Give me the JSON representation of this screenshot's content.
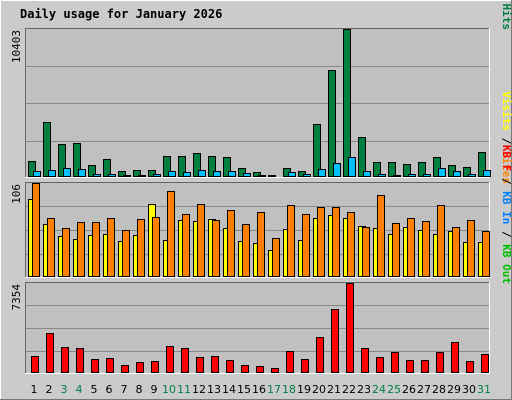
{
  "colors": {
    "bg": "#cbcbcb",
    "plot": "#c0c0c0",
    "grid": "#888888",
    "title": "#0000a0",
    "pages": "#00c0ff",
    "files": "#0000ff",
    "hits": "#008040",
    "visits": "#ffff00",
    "sites": "#ff8000",
    "kbf": "#ff0000",
    "kbin": "#0080ff",
    "kbout": "#00c000",
    "weekend": "#00804a",
    "weekday": "#000000"
  },
  "chart_data": {
    "title": "Daily usage for January 2026",
    "type": "bar",
    "days": [
      "1",
      "2",
      "3",
      "4",
      "5",
      "6",
      "7",
      "8",
      "9",
      "10",
      "11",
      "12",
      "13",
      "14",
      "15",
      "16",
      "17",
      "18",
      "19",
      "20",
      "21",
      "22",
      "23",
      "24",
      "25",
      "26",
      "27",
      "28",
      "29",
      "30",
      "31"
    ],
    "weekend_days": [
      "3",
      "4",
      "10",
      "11",
      "17",
      "18",
      "24",
      "25",
      "31"
    ],
    "panels": [
      {
        "max_label": "10403",
        "ymax": 10403,
        "right_labels": [
          {
            "text": "Pages",
            "color": "#00c0ff"
          },
          {
            "text": " / ",
            "color": "#000000"
          },
          {
            "text": "Files",
            "color": "#0000ff"
          },
          {
            "text": " / ",
            "color": "#000000"
          },
          {
            "text": "Hits",
            "color": "#008040"
          }
        ],
        "series": [
          {
            "name": "Hits",
            "color": "#008040",
            "values": [
              1100,
              3900,
              2300,
              2400,
              850,
              1300,
              420,
              500,
              500,
              1500,
              1500,
              1700,
              1450,
              1400,
              620,
              380,
              120,
              650,
              400,
              3700,
              7550,
              10403,
              2800,
              1050,
              1050,
              900,
              1050,
              1400,
              850,
              670,
              1750
            ]
          },
          {
            "name": "Files",
            "color": "#0000ff",
            "values": [
              0,
              0,
              0,
              0,
              0,
              0,
              0,
              0,
              0,
              0,
              0,
              0,
              0,
              0,
              0,
              0,
              0,
              0,
              0,
              0,
              0,
              0,
              0,
              0,
              0,
              0,
              0,
              0,
              0,
              0,
              0
            ]
          },
          {
            "name": "Pages",
            "color": "#00c0ff",
            "values": [
              420,
              500,
              650,
              540,
              240,
              200,
              160,
              160,
              200,
              400,
              340,
              520,
              400,
              400,
              300,
              120,
              40,
              360,
              220,
              550,
              1000,
              1400,
              450,
              230,
              160,
              230,
              200,
              600,
              400,
              180,
              460
            ]
          }
        ]
      },
      {
        "max_label": "106",
        "ymax": 106,
        "right_labels": [
          {
            "text": "Visits",
            "color": "#ffff00"
          },
          {
            "text": " / ",
            "color": "#000000"
          },
          {
            "text": "Sites",
            "color": "#ff8000"
          }
        ],
        "series": [
          {
            "name": "Visits",
            "color": "#ffff00",
            "values": [
              88,
              60,
              46,
              43,
              47,
              48,
              41,
              47,
              82,
              42,
              64,
              63,
              65,
              55,
              41,
              38,
              31,
              54,
              42,
              66,
              70,
              66,
              57,
              55,
              48,
              56,
              53,
              49,
              52,
              40,
              39
            ]
          },
          {
            "name": "Sites",
            "color": "#ff8000",
            "values": [
              106,
              66,
              55,
              62,
              62,
              67,
              53,
              65,
              68,
              97,
              71,
              82,
              64,
              75,
              60,
              73,
              44,
              81,
              71,
              79,
              79,
              73,
              56,
              93,
              61,
              66,
              63,
              81,
              56,
              64,
              52
            ]
          }
        ]
      },
      {
        "max_label": "7354",
        "ymax": 7354,
        "right_labels": [
          {
            "text": "KB F",
            "color": "#ff0000"
          },
          {
            "text": " / ",
            "color": "#000000"
          },
          {
            "text": "KB In",
            "color": "#0080ff"
          },
          {
            "text": " / ",
            "color": "#000000"
          },
          {
            "text": "KB Out",
            "color": "#00c000"
          }
        ],
        "series": [
          {
            "name": "KB F",
            "color": "#ff0000",
            "values": [
              1350,
              3250,
              2150,
              2050,
              1120,
              1230,
              640,
              930,
              950,
              2200,
              2010,
              1330,
              1420,
              1100,
              640,
              570,
              370,
              1780,
              1140,
              2950,
              5260,
              7354,
              2010,
              1270,
              1700,
              1070,
              1040,
              1730,
              2570,
              1020,
              1560
            ]
          },
          {
            "name": "KB In",
            "color": "#0080ff",
            "values": [
              0,
              0,
              0,
              0,
              0,
              0,
              0,
              0,
              0,
              0,
              0,
              0,
              0,
              0,
              0,
              0,
              0,
              0,
              0,
              0,
              0,
              0,
              0,
              0,
              0,
              0,
              0,
              0,
              0,
              0,
              0
            ]
          },
          {
            "name": "KB Out",
            "color": "#00c000",
            "values": [
              0,
              0,
              0,
              0,
              0,
              0,
              0,
              0,
              0,
              0,
              0,
              0,
              0,
              0,
              0,
              0,
              0,
              0,
              0,
              0,
              0,
              0,
              0,
              0,
              0,
              0,
              0,
              0,
              0,
              0,
              0
            ]
          }
        ]
      }
    ]
  }
}
